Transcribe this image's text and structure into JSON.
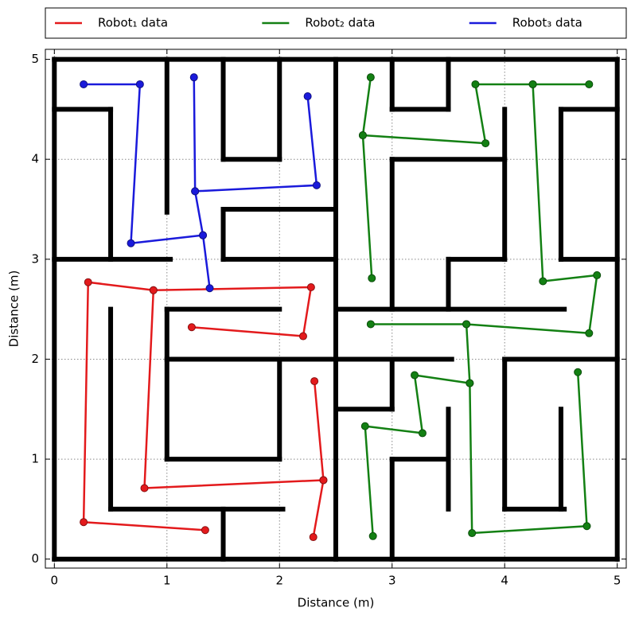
{
  "chart_data": {
    "type": "line",
    "xlabel": "Distance (m)",
    "ylabel": "Distance (m)",
    "xlim": [
      -0.08,
      5.08
    ],
    "ylim": [
      -0.09,
      5.1
    ],
    "xticks": [
      0,
      1,
      2,
      3,
      4,
      5
    ],
    "yticks": [
      0,
      1,
      2,
      3,
      4,
      5
    ],
    "grid": true,
    "legend": "top",
    "markers": true,
    "wall_color": "#000000",
    "walls": [
      [
        0,
        0,
        5,
        0
      ],
      [
        5,
        0,
        5,
        5
      ],
      [
        5,
        5,
        0,
        5
      ],
      [
        0,
        5,
        0,
        0
      ],
      [
        0,
        4.5,
        0.5,
        4.5
      ],
      [
        0.5,
        4.5,
        0.5,
        3
      ],
      [
        0,
        3,
        1.03,
        3
      ],
      [
        1,
        5,
        1,
        3.47
      ],
      [
        1.5,
        5,
        1.5,
        4
      ],
      [
        1.5,
        4,
        2,
        4
      ],
      [
        2,
        4,
        2,
        5
      ],
      [
        1.5,
        3.5,
        2.5,
        3.5
      ],
      [
        1.5,
        3.5,
        1.5,
        3
      ],
      [
        1.5,
        3,
        2.5,
        3
      ],
      [
        2.5,
        5,
        2.5,
        0
      ],
      [
        1,
        2.5,
        2,
        2.5
      ],
      [
        1,
        2.5,
        1,
        1
      ],
      [
        1,
        2,
        3.53,
        2
      ],
      [
        2,
        2,
        2,
        1
      ],
      [
        1,
        1,
        2,
        1
      ],
      [
        0.5,
        2.5,
        0.5,
        0.5
      ],
      [
        0.5,
        0.5,
        2.03,
        0.5
      ],
      [
        1.5,
        0.5,
        1.5,
        0
      ],
      [
        3,
        5,
        3,
        4.5
      ],
      [
        3,
        4.5,
        3.5,
        4.5
      ],
      [
        3.5,
        4.5,
        3.5,
        5
      ],
      [
        4,
        4.5,
        4,
        3
      ],
      [
        3.5,
        3,
        4,
        3
      ],
      [
        3.5,
        3,
        3.5,
        2.5
      ],
      [
        3,
        4,
        4,
        4
      ],
      [
        3,
        4,
        3,
        2.5
      ],
      [
        2.5,
        2.5,
        4.53,
        2.5
      ],
      [
        4.5,
        4.5,
        5,
        4.5
      ],
      [
        4.5,
        4.5,
        4.5,
        3
      ],
      [
        4.5,
        3,
        5,
        3
      ],
      [
        4,
        2,
        5,
        2
      ],
      [
        3,
        2,
        3,
        1.5
      ],
      [
        2.5,
        1.5,
        3,
        1.5
      ],
      [
        3,
        1,
        3,
        0
      ],
      [
        3,
        1,
        3.5,
        1
      ],
      [
        3.5,
        1.5,
        3.5,
        0.5
      ],
      [
        4,
        2,
        4,
        0.5
      ],
      [
        4,
        0.5,
        4.53,
        0.5
      ],
      [
        4.5,
        0.5,
        4.5,
        1.5
      ]
    ],
    "series": [
      {
        "name": "Robot₁ data",
        "color": "#e31a1c",
        "x": [
          1.22,
          2.21,
          2.28,
          0.88,
          0.3,
          0.26,
          1.34,
          null,
          0.88,
          0.8,
          2.39,
          2.31,
          null,
          2.39,
          2.3
        ],
        "values": [
          2.32,
          2.23,
          2.72,
          2.69,
          2.77,
          0.37,
          0.29,
          null,
          2.69,
          0.71,
          0.79,
          1.78,
          null,
          0.79,
          0.22
        ]
      },
      {
        "name": "Robot₂ data",
        "color": "#138013",
        "x": [
          2.81,
          2.74,
          2.82,
          null,
          2.74,
          3.83,
          3.74,
          4.25,
          4.75,
          null,
          4.25,
          4.34,
          4.82,
          4.75,
          3.66,
          2.81,
          null,
          3.66,
          3.69,
          3.2,
          3.27,
          2.76,
          2.83,
          null,
          3.69,
          3.71,
          4.73,
          4.65
        ],
        "values": [
          4.82,
          4.24,
          2.81,
          null,
          4.24,
          4.16,
          4.75,
          4.75,
          4.75,
          null,
          4.75,
          2.78,
          2.84,
          2.26,
          2.35,
          2.35,
          null,
          2.35,
          1.76,
          1.84,
          1.26,
          1.33,
          0.23,
          null,
          1.76,
          0.26,
          0.33,
          1.87
        ]
      },
      {
        "name": "Robot₃ data",
        "color": "#1a1adb",
        "x": [
          0.26,
          0.76,
          0.68,
          1.32,
          1.38,
          null,
          1.32,
          1.25,
          1.24,
          null,
          1.25,
          2.33,
          2.25
        ],
        "values": [
          4.75,
          4.75,
          3.16,
          3.24,
          2.71,
          null,
          3.24,
          3.68,
          4.82,
          null,
          3.68,
          3.74,
          4.63
        ]
      }
    ]
  }
}
